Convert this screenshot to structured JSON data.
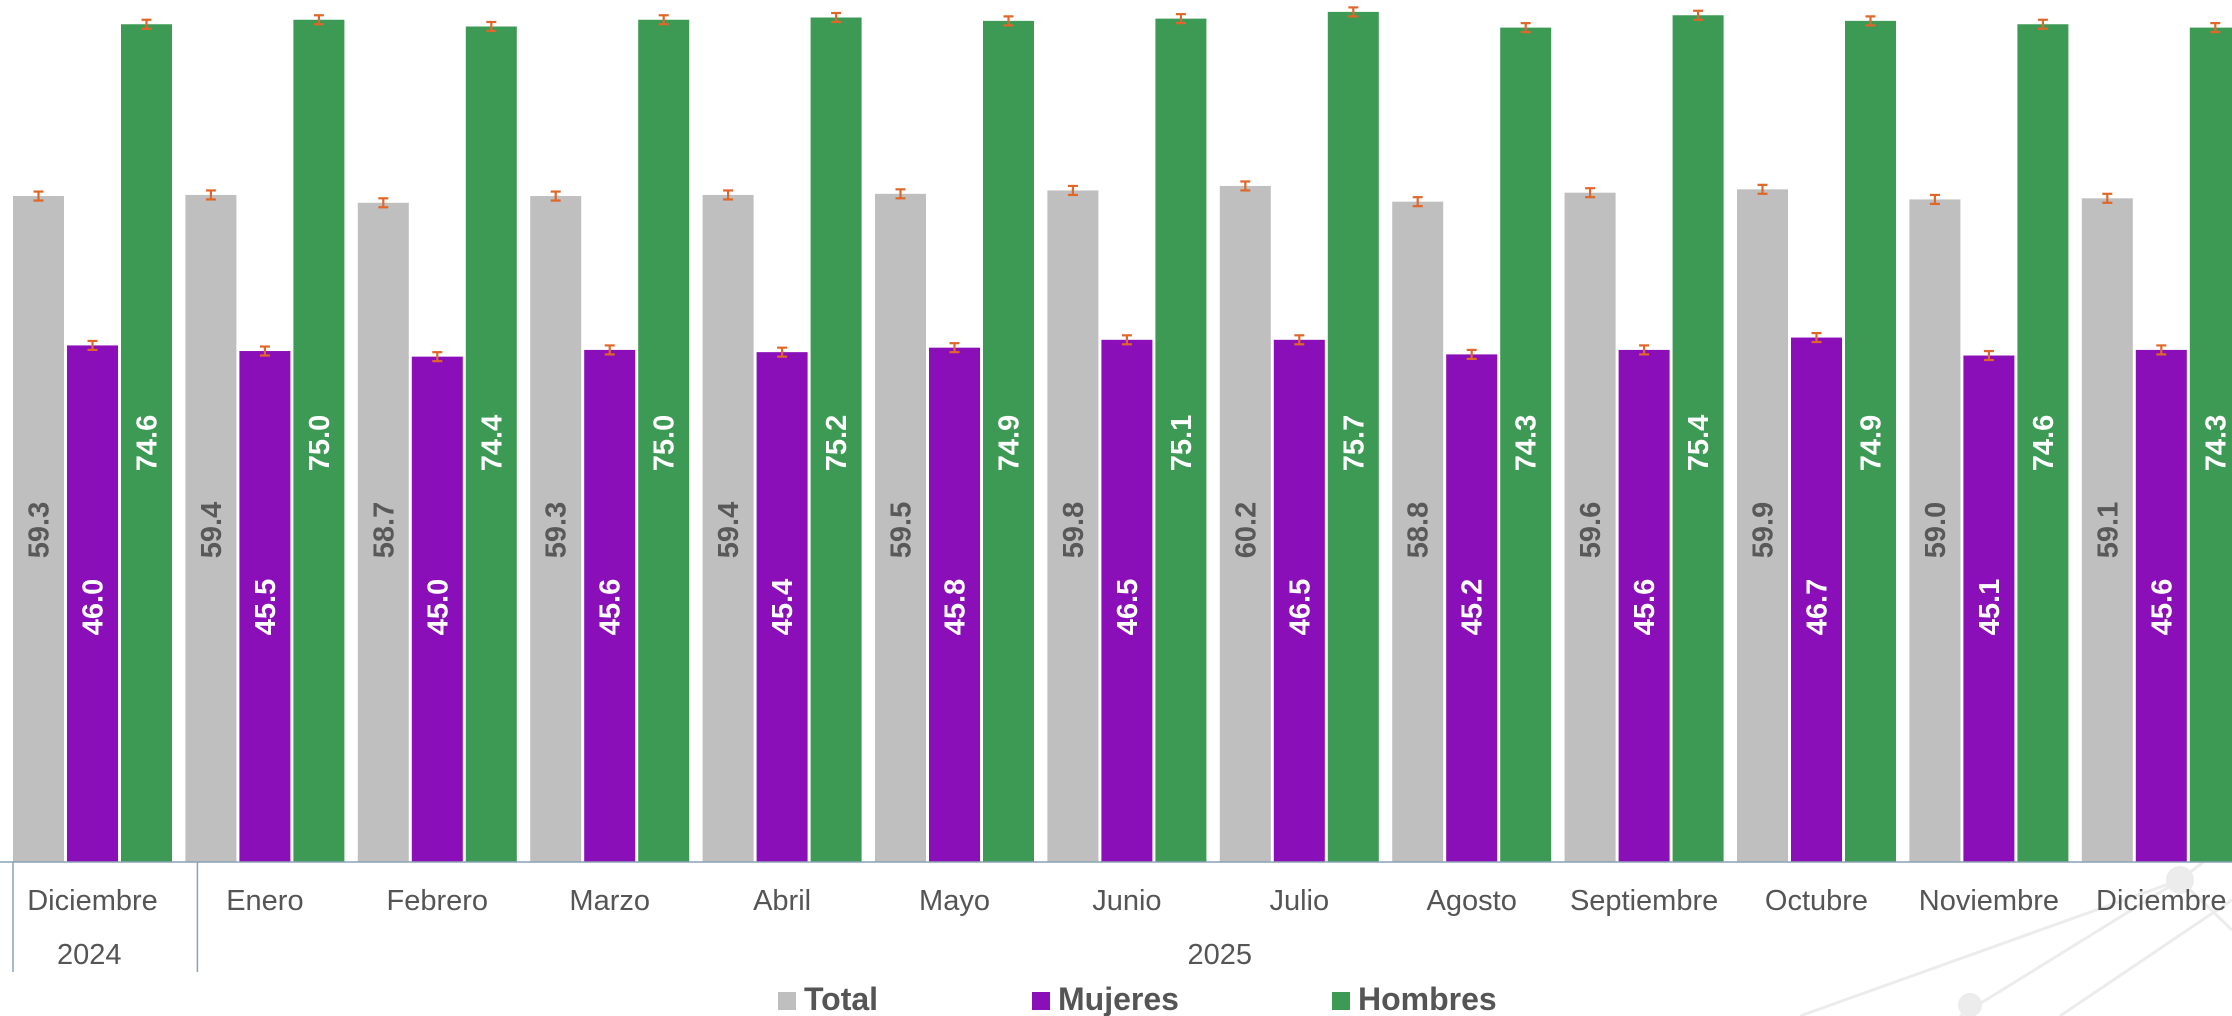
{
  "chart_data": {
    "type": "bar",
    "orientation": "vertical",
    "categories": [
      "Diciembre",
      "Enero",
      "Febrero",
      "Marzo",
      "Abril",
      "Mayo",
      "Junio",
      "Julio",
      "Agosto",
      "Septiembre",
      "Octubre",
      "Noviembre",
      "Diciembre"
    ],
    "year_groups": [
      {
        "label": "2024",
        "start": 0,
        "end": 0
      },
      {
        "label": "2025",
        "start": 1,
        "end": 12
      }
    ],
    "series": [
      {
        "name": "Total",
        "color": "#bfbfbf",
        "label_color": "#595959",
        "values": [
          59.3,
          59.4,
          58.7,
          59.3,
          59.4,
          59.5,
          59.8,
          60.2,
          58.8,
          59.6,
          59.9,
          59.0,
          59.1
        ],
        "labels": [
          "59.3",
          "59.4",
          "58.7",
          "59.3",
          "59.4",
          "59.5",
          "59.8",
          "60.2",
          "58.8",
          "59.6",
          "59.9",
          "59.0",
          "59.1"
        ]
      },
      {
        "name": "Mujeres",
        "color": "#8a0fb8",
        "label_color": "#ffffff",
        "values": [
          46.0,
          45.5,
          45.0,
          45.6,
          45.4,
          45.8,
          46.5,
          46.5,
          45.2,
          45.6,
          46.7,
          45.1,
          45.6
        ],
        "labels": [
          "46.0",
          "45.5",
          "45.0",
          "45.6",
          "45.4",
          "45.8",
          "46.5",
          "46.5",
          "45.2",
          "45.6",
          "46.7",
          "45.1",
          "45.6"
        ]
      },
      {
        "name": "Hombres",
        "color": "#3d9a54",
        "label_color": "#ffffff",
        "values": [
          74.6,
          75.0,
          74.4,
          75.0,
          75.2,
          74.9,
          75.1,
          75.7,
          74.3,
          75.4,
          74.9,
          74.6,
          74.3
        ],
        "labels": [
          "74.6",
          "75.0",
          "74.4",
          "75.0",
          "75.2",
          "74.9",
          "75.1",
          "75.7",
          "74.3",
          "75.4",
          "74.9",
          "74.6",
          "74.3"
        ]
      }
    ],
    "error_bar_color": "#e0672a",
    "error_bar_half_width": 0.4,
    "ylim": [
      0,
      76
    ],
    "grid": false,
    "legend_position": "bottom-center",
    "data_labels": "inside, rotated vertical"
  }
}
